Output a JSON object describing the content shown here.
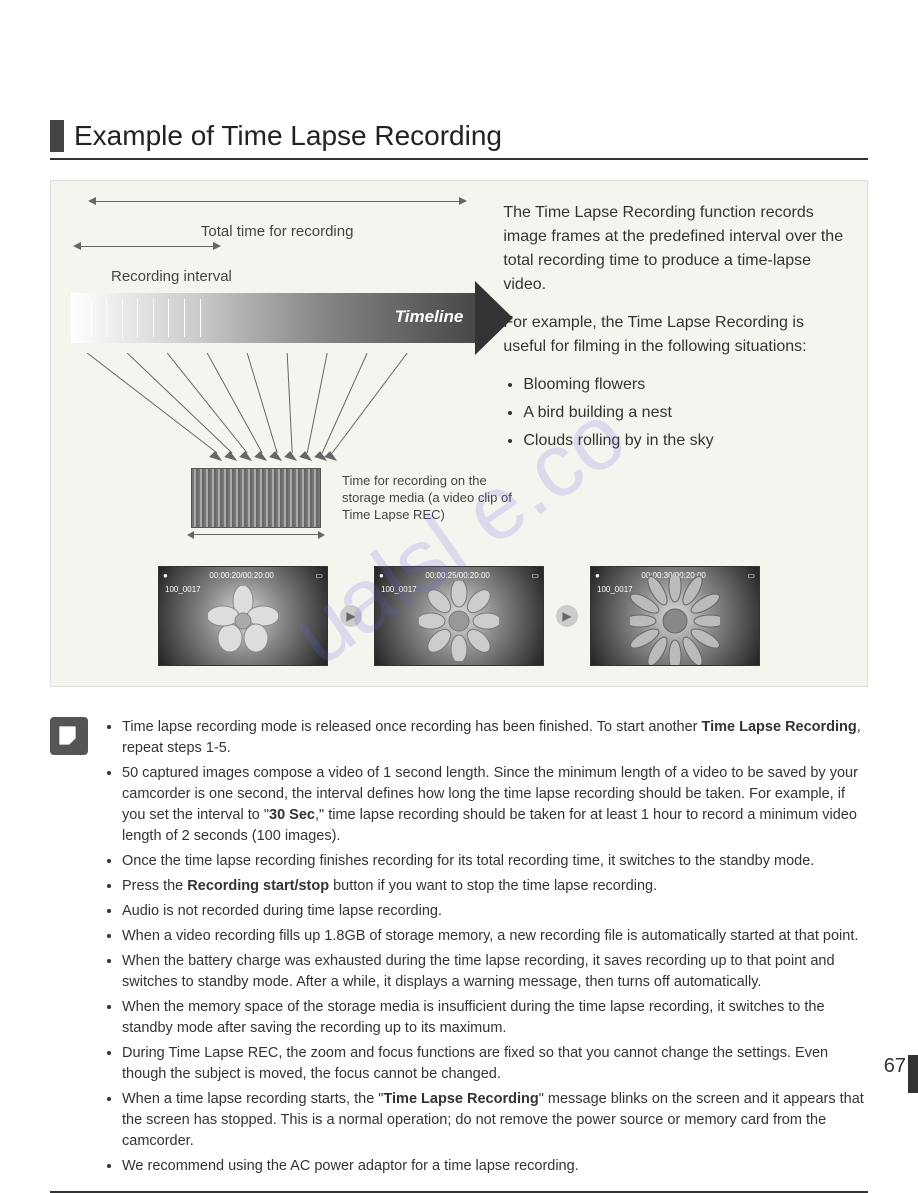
{
  "title": "Example of Time Lapse Recording",
  "page_number": "67",
  "watermark": "ualsl   e.co",
  "diagram": {
    "total_time_label": "Total time for recording",
    "interval_label": "Recording interval",
    "timeline_label": "Timeline",
    "storage_label": "Time for recording on the storage media (a video clip of Time Lapse REC)",
    "description_p1": "The Time Lapse Recording function records image frames at the predefined interval over the total recording time to produce a time-lapse video.",
    "description_p2": "For example, the Time Lapse Recording is useful for filming in the following situations:",
    "situations": [
      "Blooming flowers",
      "A bird building a nest",
      "Clouds rolling by in the sky"
    ],
    "thumbs": [
      {
        "time": "00:00:20/00:20:00",
        "file": "100_0017"
      },
      {
        "time": "00:00:25/00:20:00",
        "file": "100_0017"
      },
      {
        "time": "00:00:30/00:20:00",
        "file": "100_0017"
      }
    ]
  },
  "notes": [
    "Time lapse recording mode is released once recording has been finished. To start another Time Lapse Recording, repeat steps 1-5.",
    "50 captured images compose a video of 1 second length. Since the minimum length of a video to be saved by your camcorder is one second, the interval defines how long the time lapse recording should be taken. For example, if you set the interval to \"30 Sec,\" time lapse recording should be taken for at least 1 hour to record a minimum video length of 2 seconds (100 images).",
    "Once the time lapse recording finishes recording for its total recording time, it switches to the standby mode.",
    "Press the Recording start/stop button if you want to stop the time lapse recording.",
    "Audio is not recorded during time lapse recording.",
    "When a video recording fills up 1.8GB of storage memory, a new recording file is automatically started at that point.",
    "When the battery charge was exhausted during the time lapse recording, it saves recording up to that point and switches to standby mode. After a while, it displays a warning message, then turns off automatically.",
    "When the memory space of the storage media is insufficient during the time lapse recording, it switches to the standby mode after saving the recording up to its maximum.",
    "During Time Lapse REC, the zoom and focus functions are fixed so that you cannot change the settings. Even though the subject is moved, the focus cannot be changed.",
    "When a time lapse recording starts, the \"Time Lapse Recording\" message blinks on the screen and it appears that the screen has stopped. This is a normal operation; do not remove the power source or memory card from the camcorder.",
    "We recommend using the AC power adaptor for a time lapse recording."
  ],
  "bold_terms": {
    "interval_30": "30 Sec",
    "recording_button": "Recording start/stop",
    "tlr_message": "Time Lapse Recording"
  }
}
